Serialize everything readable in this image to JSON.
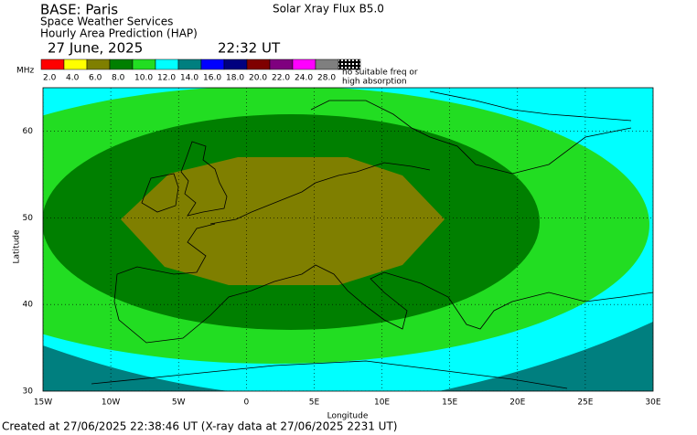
{
  "header": {
    "base": "BASE: Paris",
    "org": "Space Weather Services",
    "product": "Hourly Area Prediction (HAP)",
    "date": "27 June, 2025",
    "time": "22:32 UT",
    "flux": "Solar Xray Flux B5.0"
  },
  "legend": {
    "unit": "MHz",
    "items": [
      {
        "label": "2.0",
        "color": "#ff0000"
      },
      {
        "label": "4.0",
        "color": "#ffff00"
      },
      {
        "label": "6.0",
        "color": "#7f7f00"
      },
      {
        "label": "8.0",
        "color": "#007f00"
      },
      {
        "label": "10.0",
        "color": "#22dd22"
      },
      {
        "label": "12.0",
        "color": "#00ffff"
      },
      {
        "label": "14.0",
        "color": "#007f7f"
      },
      {
        "label": "16.0",
        "color": "#0000ff"
      },
      {
        "label": "18.0",
        "color": "#00007f"
      },
      {
        "label": "20.0",
        "color": "#7f0000"
      },
      {
        "label": "22.0",
        "color": "#7f007f"
      },
      {
        "label": "24.0",
        "color": "#ff00ff"
      },
      {
        "label": "28.0",
        "color": "#7f7f7f"
      }
    ],
    "no_freq": [
      "no suitable freq or",
      "high absorption"
    ]
  },
  "map": {
    "xlabel": "Longitude",
    "ylabel": "Latitude",
    "xlim": [
      -15,
      30
    ],
    "ylim": [
      30,
      65
    ],
    "xticks": [
      {
        "value": -15,
        "label": "15W"
      },
      {
        "value": -10,
        "label": "10W"
      },
      {
        "value": -5,
        "label": "5W"
      },
      0,
      {
        "value": 5,
        "label": "5E"
      },
      {
        "value": 10,
        "label": "10E"
      },
      {
        "value": 15,
        "label": "15E"
      },
      {
        "value": 20,
        "label": "20E"
      },
      {
        "value": 25,
        "label": "25E"
      },
      {
        "value": 30,
        "label": "30E"
      }
    ],
    "yticks": [
      30,
      40,
      50,
      60
    ],
    "grid": true
  },
  "footer": "Created at 27/06/2025 22:38:46 UT (X-ray data at 27/06/2025 2231 UT)"
}
